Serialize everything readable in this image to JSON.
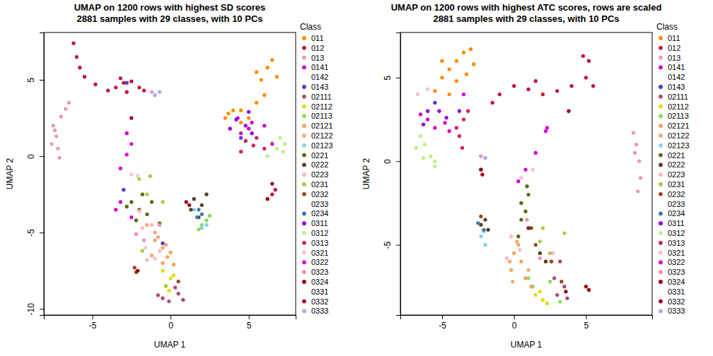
{
  "chart_data": [
    {
      "type": "scatter",
      "title": "UMAP on 1200 rows with highest SD scores",
      "subtitle": "2881 samples with 29 classes, with 10 PCs",
      "x_label": "UMAP 1",
      "y_label": "UMAP 2",
      "legend_title": "Class",
      "legend": "right",
      "marker": "circle",
      "xlim": [
        -8.1,
        8.0
      ],
      "ylim": [
        -10.4,
        8.1
      ],
      "xticks": [
        -5,
        0,
        5
      ],
      "yticks": [
        -10,
        -5,
        0,
        5
      ],
      "series": [
        {
          "name": "011",
          "color": "#ff8c00",
          "x": [
            3.5,
            4,
            4.5,
            5,
            5.5,
            6,
            5.8,
            6.2,
            6.5,
            5.5,
            4.5,
            3.7,
            6.8
          ],
          "y": [
            2.5,
            3,
            3,
            2.5,
            3.5,
            4,
            5,
            5.8,
            6.3,
            5.5,
            2.2,
            2.8,
            5.2
          ]
        },
        {
          "name": "012",
          "color": "#c0143c",
          "x": [
            -6.2,
            -6,
            -5.8,
            -5.5,
            -4.8,
            -4,
            -3.5,
            -3,
            -2.5,
            -2.8,
            -2,
            -1.7,
            -3.2,
            6.5,
            6.7
          ],
          "y": [
            7.4,
            6.5,
            5.8,
            5.2,
            4.7,
            4.3,
            4.5,
            4.8,
            4.9,
            4.2,
            4.5,
            4.3,
            5.1,
            -2.5,
            -2.2
          ]
        },
        {
          "name": "013",
          "color": "#e899b5",
          "x": [
            -7.5,
            -7.3,
            -7.2,
            -7,
            -6.7,
            -6.5,
            -7.6,
            -7.4,
            -7.1,
            -1.2
          ],
          "y": [
            2,
            1.3,
            0.5,
            2.6,
            3.1,
            3.5,
            0.8,
            1.7,
            -0.1,
            4.2
          ]
        },
        {
          "name": "0141",
          "color": "#cc00cc",
          "x": [
            4.5,
            5,
            5.2,
            6,
            4.3,
            -3.5,
            -2.5,
            -2.8,
            -3.2
          ],
          "y": [
            1.5,
            1.8,
            2.2,
            2,
            2.5,
            -3.5,
            -4,
            1.5,
            -3
          ]
        },
        {
          "name": "0142",
          "color": "#ffffff",
          "x": [],
          "y": []
        },
        {
          "name": "0143",
          "color": "#5a35d0",
          "x": [
            -2.8,
            4.5,
            -0.5,
            -3
          ],
          "y": [
            4.8,
            1.2,
            -5.7,
            -2.2
          ]
        },
        {
          "name": "02111",
          "color": "#b0477a",
          "x": [
            -0.5,
            -0.1,
            0.5,
            0.3,
            -0.8,
            0.8
          ],
          "y": [
            -9.3,
            -9.5,
            -9,
            -8.6,
            -9.1,
            -9.4
          ]
        },
        {
          "name": "02112",
          "color": "#dddd00",
          "x": [
            -0.5,
            0,
            -0.3,
            0.2,
            -0.1
          ],
          "y": [
            -7.5,
            -8,
            -8.5,
            -7.8,
            -8.8
          ]
        },
        {
          "name": "02113",
          "color": "#88dd55",
          "x": [
            2,
            2.3,
            1.8,
            2.5
          ],
          "y": [
            -4.5,
            -4.2,
            -4.8,
            -3.9
          ]
        },
        {
          "name": "02121",
          "color": "#f4a460",
          "x": [
            -0.3,
            0,
            -0.5,
            0.2,
            -0.2,
            -1
          ],
          "y": [
            -5.8,
            -6.3,
            -7,
            -7.1,
            -6.6,
            -5.5
          ]
        },
        {
          "name": "02122",
          "color": "#f5a97a",
          "x": [
            -1.5,
            -1,
            -0.5,
            -1.2,
            -0.8
          ],
          "y": [
            -4.5,
            -5,
            -6,
            -6.5,
            -5.3
          ]
        },
        {
          "name": "02123",
          "color": "#87ceeb",
          "x": [
            2.3,
            2,
            1.5
          ],
          "y": [
            -4.5,
            -4.7,
            -3.5
          ]
        },
        {
          "name": "0221",
          "color": "#5b6b0a",
          "x": [
            -2.5,
            -2,
            -1.5,
            -2.8,
            -1.2,
            -2.2,
            -1.8,
            -0.7
          ],
          "y": [
            -3,
            -3.5,
            -3.8,
            -3.3,
            -3,
            -4.2,
            -2.5,
            -4.4
          ]
        },
        {
          "name": "0222",
          "color": "#5c3d1e",
          "x": [
            1.5,
            2,
            1.8,
            1.3,
            2.3
          ],
          "y": [
            -2.8,
            -3.2,
            -4,
            -3.5,
            -2.5
          ]
        },
        {
          "name": "0223",
          "color": "#ffb6c1",
          "x": [
            -1.8,
            -1.2,
            -0.7,
            -1.5,
            -2
          ],
          "y": [
            -4.7,
            -4.5,
            -6.2,
            -6.8,
            -3.6
          ]
        },
        {
          "name": "0231",
          "color": "#aacc44",
          "x": [
            -2,
            -1.3,
            -1.5,
            -0.5,
            -1.8,
            -0.3
          ],
          "y": [
            -1.5,
            -1.3,
            -2.5,
            -3,
            -6.2,
            -8.5
          ]
        },
        {
          "name": "0232",
          "color": "#a0441a",
          "x": [
            -2.2,
            -2.3,
            0.5
          ],
          "y": [
            -7.6,
            -7.3,
            -8.2
          ]
        },
        {
          "name": "0233",
          "color": "#ffffff",
          "x": [],
          "y": []
        },
        {
          "name": "0234",
          "color": "#3a7ca5",
          "x": [
            1.8,
            2,
            1.7
          ],
          "y": [
            -3.5,
            -3.8,
            -4
          ]
        },
        {
          "name": "0311",
          "color": "#9400d3",
          "x": [
            4.2,
            4.8,
            5.2,
            5,
            3.8
          ],
          "y": [
            2.4,
            2,
            1.5,
            2.9,
            1.8
          ]
        },
        {
          "name": "0312",
          "color": "#bff08a",
          "x": [
            6.8,
            7.2,
            6.5,
            7,
            6.2,
            7.3
          ],
          "y": [
            0.5,
            0.3,
            0.9,
            1.2,
            0,
            0.8
          ]
        },
        {
          "name": "0313",
          "color": "#d02060",
          "x": [
            4.8,
            5.3,
            5.5,
            6,
            4.5
          ],
          "y": [
            1,
            0.7,
            1.2,
            0.5,
            0.3
          ]
        },
        {
          "name": "0321",
          "color": "#ffc0cb",
          "x": [
            -2.5,
            -2.1,
            -1.6,
            -1
          ],
          "y": [
            -1.2,
            -1.3,
            -6,
            -6.7
          ]
        },
        {
          "name": "0322",
          "color": "#dd00dd",
          "x": [
            -3.2,
            -2.8,
            -2.5,
            6.5
          ],
          "y": [
            -0.8,
            0.1,
            0.8,
            0.8
          ]
        },
        {
          "name": "0323",
          "color": "#f090b0",
          "x": [
            -2.2,
            -1.7,
            -0.7
          ],
          "y": [
            -5.1,
            -5.5,
            -4.5
          ]
        },
        {
          "name": "0324",
          "color": "#990000",
          "x": [
            6.2,
            -2.1,
            1.2
          ],
          "y": [
            -2.8,
            -7.5,
            -3.2
          ]
        },
        {
          "name": "0331",
          "color": "#ffffff",
          "x": [],
          "y": []
        },
        {
          "name": "0332",
          "color": "#a00020",
          "x": [
            -2.5,
            1,
            6.5
          ],
          "y": [
            2.5,
            -3,
            -1.8
          ]
        },
        {
          "name": "0333",
          "color": "#aaaaee",
          "x": [
            -1,
            -0.7
          ],
          "y": [
            4,
            4.2
          ]
        }
      ]
    },
    {
      "type": "scatter",
      "title": "UMAP on 1200 rows with highest ATC scores, rows are scaled",
      "subtitle": "2881 samples with 29 classes, with 10 PCs",
      "x_label": "UMAP 1",
      "y_label": "UMAP 2",
      "legend_title": "Class",
      "legend": "right",
      "marker": "circle",
      "xlim": [
        -7.9,
        9.6
      ],
      "ylim": [
        -9.2,
        7.7
      ],
      "xticks": [
        -5,
        0,
        5
      ],
      "yticks": [
        -5,
        0,
        5
      ],
      "series": [
        {
          "name": "011",
          "color": "#ff8c00",
          "x": [
            -5,
            -4.5,
            -4,
            -3.5,
            -3,
            -4.5,
            -5.5,
            -3.3,
            -4,
            -5,
            -2.8
          ],
          "y": [
            5,
            5.5,
            6,
            6.5,
            6.7,
            4,
            4.2,
            5.2,
            4.8,
            6,
            5.8
          ]
        },
        {
          "name": "012",
          "color": "#c0143c",
          "x": [
            -1,
            0,
            1,
            2,
            3,
            4,
            5,
            5.2,
            4.8,
            5.5,
            1.5,
            -1.5
          ],
          "y": [
            4,
            4.5,
            4.3,
            4,
            4.2,
            4.5,
            5,
            6,
            6.3,
            4.5,
            4.8,
            3.5
          ]
        },
        {
          "name": "013",
          "color": "#e899b5",
          "x": [
            8.3,
            8.5,
            8.7,
            8.8,
            8.6,
            8.4
          ],
          "y": [
            1.7,
            1,
            0,
            -1,
            -1.8,
            0.5
          ]
        },
        {
          "name": "0141",
          "color": "#cc00cc",
          "x": [
            -6,
            -5.5,
            -4.8,
            -4.5,
            -6.5,
            0.8,
            1.5,
            2.3,
            0.3
          ],
          "y": [
            2.5,
            2,
            2.3,
            1.8,
            2.8,
            -0.5,
            0.5,
            2,
            -1.2
          ]
        },
        {
          "name": "0142",
          "color": "#ffffff",
          "x": [],
          "y": []
        },
        {
          "name": "0143",
          "color": "#5a35d0",
          "x": [
            -2.3,
            -5.5
          ],
          "y": [
            -0.5,
            3.5
          ]
        },
        {
          "name": "02111",
          "color": "#b0477a",
          "x": [
            3,
            3.5,
            2.8,
            3.2,
            3.7
          ],
          "y": [
            -8,
            -7.5,
            -7,
            -6,
            -8.2
          ]
        },
        {
          "name": "02112",
          "color": "#dddd00",
          "x": [
            1.5,
            2,
            1.8,
            2.3
          ],
          "y": [
            -8,
            -8.3,
            -7.8,
            -8.5
          ]
        },
        {
          "name": "02113",
          "color": "#88dd55",
          "x": [
            1,
            1.3,
            3.2,
            2.5
          ],
          "y": [
            -7,
            -7.5,
            -8.4,
            -7.2
          ]
        },
        {
          "name": "02121",
          "color": "#f4a460",
          "x": [
            0,
            0.5,
            -0.2,
            0.8,
            0.3,
            1.2
          ],
          "y": [
            -5.5,
            -6,
            -6.5,
            -7,
            -5,
            -7.5
          ]
        },
        {
          "name": "02122",
          "color": "#f5a97a",
          "x": [
            -0.3,
            0.2,
            1,
            -0.1
          ],
          "y": [
            -6,
            -4.8,
            -6.5,
            -7.2
          ]
        },
        {
          "name": "02123",
          "color": "#87ceeb",
          "x": [
            -2.3,
            -2,
            -2.1
          ],
          "y": [
            -4.5,
            -5,
            -4.2
          ]
        },
        {
          "name": "0221",
          "color": "#5b6b0a",
          "x": [
            0.5,
            0.8,
            1,
            0.5,
            1.2,
            0.3,
            0.9
          ],
          "y": [
            -2.5,
            -3,
            -2,
            -3.5,
            -4,
            -4.5,
            -1.5
          ]
        },
        {
          "name": "0222",
          "color": "#5c3d1e",
          "x": [
            -2.3,
            -2,
            -1.8,
            1.8,
            2.2
          ],
          "y": [
            -3.8,
            -3.5,
            -4.1,
            -5.5,
            -6
          ]
        },
        {
          "name": "0223",
          "color": "#ffb6c1",
          "x": [
            -0.2,
            0.4,
            -0.5,
            2.7
          ],
          "y": [
            -4.5,
            -5.3,
            -5.8,
            -5.5
          ]
        },
        {
          "name": "0231",
          "color": "#aacc44",
          "x": [
            2,
            2.5,
            1.8,
            3.5
          ],
          "y": [
            -4,
            -5.5,
            -4.8,
            -4.3
          ]
        },
        {
          "name": "0232",
          "color": "#a0441a",
          "x": [
            -2.3,
            1.5,
            2.6,
            3.3
          ],
          "y": [
            -3.3,
            -5,
            -6,
            -7.2
          ]
        },
        {
          "name": "0233",
          "color": "#ffffff",
          "x": [],
          "y": []
        },
        {
          "name": "0234",
          "color": "#3a7ca5",
          "x": [
            -2.1,
            -2.5
          ],
          "y": [
            -4.1,
            -3.7
          ]
        },
        {
          "name": "0311",
          "color": "#9400d3",
          "x": [
            -6,
            -5.2,
            -4.7,
            -3.8,
            -6.3
          ],
          "y": [
            3,
            3,
            2.6,
            3,
            2.2
          ]
        },
        {
          "name": "0312",
          "color": "#bff08a",
          "x": [
            -6.5,
            -6.8,
            -6.3,
            -5.8,
            -6.2,
            -5.5,
            -5.5
          ],
          "y": [
            1.5,
            0.8,
            0.2,
            0.3,
            1,
            0,
            -0.3
          ]
        },
        {
          "name": "0313",
          "color": "#d02060",
          "x": [
            -3.5,
            -3.2,
            -3.8,
            -3.6,
            -4
          ],
          "y": [
            2.5,
            3,
            1.5,
            0.8,
            2
          ]
        },
        {
          "name": "0321",
          "color": "#ffc0cb",
          "x": [
            -6.7,
            -6,
            0.5,
            1.3
          ],
          "y": [
            4,
            4.3,
            -1,
            -0.5
          ]
        },
        {
          "name": "0322",
          "color": "#dd00dd",
          "x": [
            -3.5,
            2.2
          ],
          "y": [
            4,
            1.8
          ]
        },
        {
          "name": "0323",
          "color": "#f090b0",
          "x": [
            -2.3,
            0.9,
            1.8
          ],
          "y": [
            0.3,
            -3.5,
            -5.8
          ]
        },
        {
          "name": "0324",
          "color": "#990000",
          "x": [
            5,
            5.2,
            3.6,
            -2.3
          ],
          "y": [
            -7.5,
            -7.7,
            -7.8,
            -0.5
          ]
        },
        {
          "name": "0331",
          "color": "#ffffff",
          "x": [],
          "y": []
        },
        {
          "name": "0332",
          "color": "#a00020",
          "x": [
            -2.2,
            3.8,
            1
          ],
          "y": [
            -0.8,
            3,
            -4
          ]
        },
        {
          "name": "0333",
          "color": "#aaaaee",
          "x": [
            -2
          ],
          "y": [
            0.2
          ]
        }
      ]
    }
  ]
}
